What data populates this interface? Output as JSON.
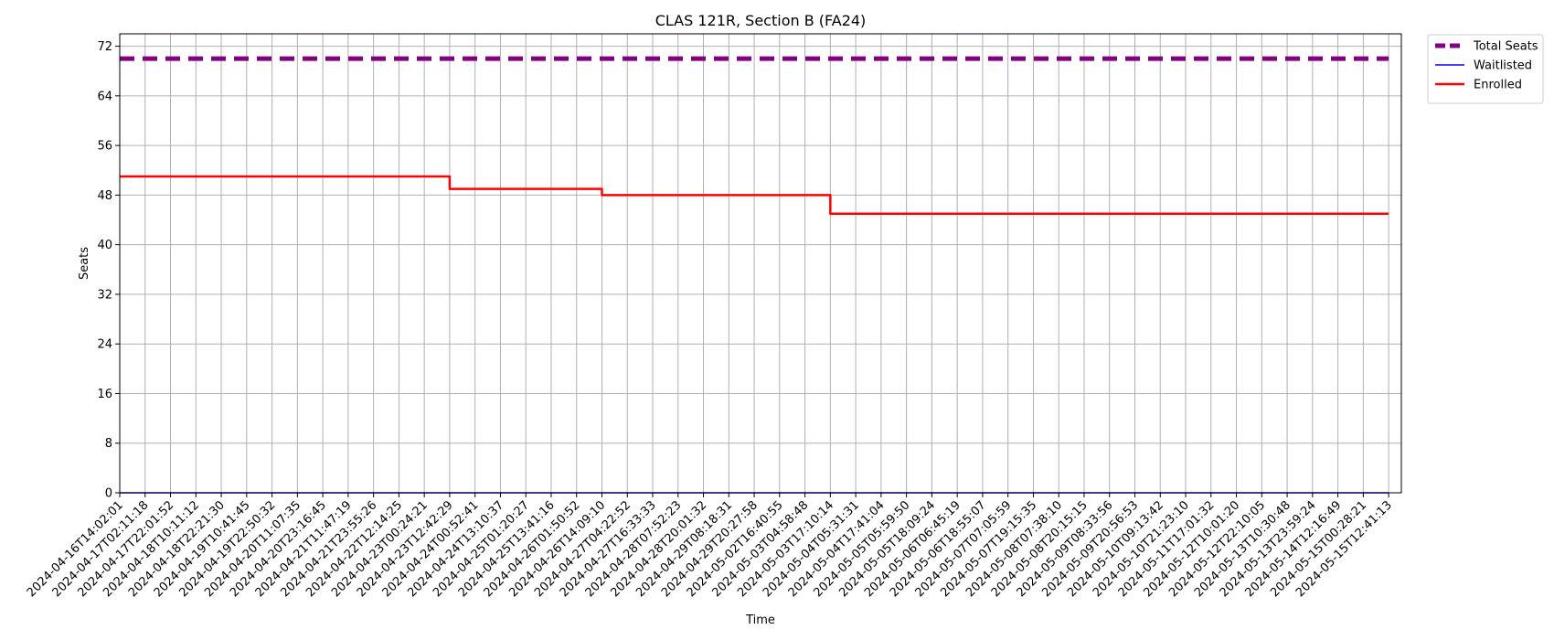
{
  "chart_data": {
    "type": "line",
    "title": "CLAS 121R, Section B (FA24)",
    "xlabel": "Time",
    "ylabel": "Seats",
    "ylim": [
      0,
      74
    ],
    "yticks": [
      0,
      8,
      16,
      24,
      32,
      40,
      48,
      56,
      64,
      72
    ],
    "grid": true,
    "legend_position": "outside-top-right",
    "x_ticks": [
      "2024-04-16T14:02:01",
      "2024-04-17T02:11:18",
      "2024-04-17T22:01:52",
      "2024-04-18T10:11:12",
      "2024-04-18T22:21:30",
      "2024-04-19T10:41:45",
      "2024-04-19T22:50:32",
      "2024-04-20T11:07:35",
      "2024-04-20T23:16:45",
      "2024-04-21T11:47:19",
      "2024-04-21T23:55:26",
      "2024-04-22T12:14:25",
      "2024-04-23T00:24:21",
      "2024-04-23T12:42:29",
      "2024-04-24T00:52:41",
      "2024-04-24T13:10:37",
      "2024-04-25T01:20:27",
      "2024-04-25T13:41:16",
      "2024-04-26T01:50:52",
      "2024-04-26T14:09:10",
      "2024-04-27T04:22:52",
      "2024-04-27T16:33:33",
      "2024-04-28T07:52:23",
      "2024-04-28T20:01:32",
      "2024-04-29T08:18:31",
      "2024-04-29T20:27:58",
      "2024-05-02T16:40:55",
      "2024-05-03T04:58:48",
      "2024-05-03T17:10:14",
      "2024-05-04T05:31:31",
      "2024-05-04T17:41:04",
      "2024-05-05T05:59:50",
      "2024-05-05T18:09:24",
      "2024-05-06T06:45:19",
      "2024-05-06T18:55:07",
      "2024-05-07T07:05:59",
      "2024-05-07T19:15:35",
      "2024-05-08T07:38:10",
      "2024-05-08T20:15:15",
      "2024-05-09T08:33:56",
      "2024-05-09T20:56:53",
      "2024-05-10T09:13:42",
      "2024-05-10T21:23:10",
      "2024-05-11T17:01:32",
      "2024-05-12T10:01:20",
      "2024-05-12T22:10:05",
      "2024-05-13T10:30:48",
      "2024-05-13T23:59:24",
      "2024-05-14T12:16:49",
      "2024-05-15T00:28:21",
      "2024-05-15T12:41:13"
    ],
    "series": [
      {
        "name": "Total Seats",
        "color": "#800080",
        "style": "dashed",
        "points": [
          [
            "2024-04-16T14:02:01",
            70
          ],
          [
            "2024-05-15T12:41:13",
            70
          ]
        ]
      },
      {
        "name": "Waitlisted",
        "color": "#0000ff",
        "style": "solid",
        "points": [
          [
            "2024-04-16T14:02:01",
            0
          ],
          [
            "2024-05-15T12:41:13",
            0
          ]
        ]
      },
      {
        "name": "Enrolled",
        "color": "#ff0000",
        "style": "solid",
        "points": [
          [
            "2024-04-16T14:02:01",
            51
          ],
          [
            "2024-04-23T12:42:29",
            51
          ],
          [
            "2024-04-23T12:42:29",
            49
          ],
          [
            "2024-04-26T14:09:10",
            49
          ],
          [
            "2024-04-26T14:09:10",
            48
          ],
          [
            "2024-05-03T17:10:14",
            48
          ],
          [
            "2024-05-03T17:10:14",
            45
          ],
          [
            "2024-05-15T12:41:13",
            45
          ]
        ]
      }
    ]
  }
}
